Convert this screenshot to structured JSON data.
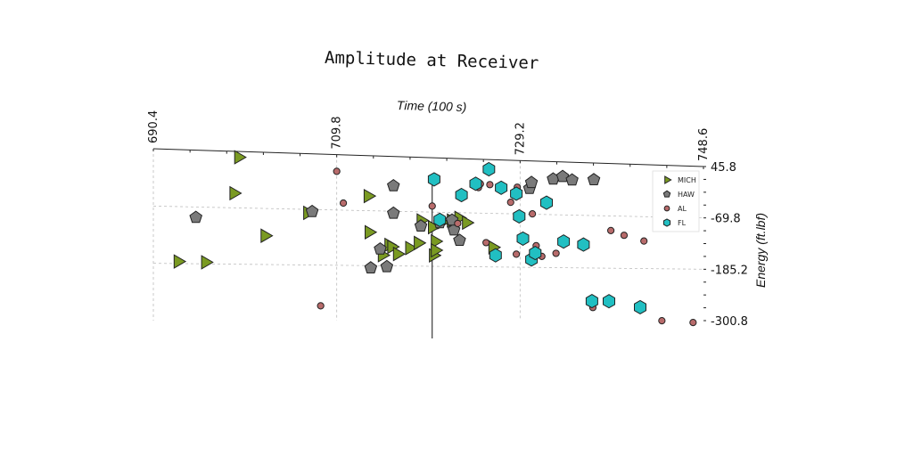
{
  "chart_data": {
    "type": "scatter",
    "title": "Amplitude at Receiver",
    "xlabel": "Time (100 s)",
    "ylabel": "Energy (ft.lbf)",
    "xlim": [
      690.4,
      748.6
    ],
    "ylim": [
      -300.8,
      45.8
    ],
    "xticks": [
      "690.4",
      "709.8",
      "729.2",
      "748.6"
    ],
    "yticks": [
      "45.8",
      "-69.8",
      "-185.2",
      "-300.8"
    ],
    "grid": true,
    "legend_position": "top-right",
    "colors": {
      "MICH": "#7a9a22",
      "HAW": "#7a7a7a",
      "AL": "#b86b6b",
      "FL": "#21bfc2"
    },
    "series": [
      {
        "name": "MICH",
        "marker": "triangle-right",
        "points": [
          [
            699.4,
            34
          ],
          [
            698.9,
            -40
          ],
          [
            693.0,
            -181
          ],
          [
            695.9,
            -182
          ],
          [
            702.2,
            -126
          ],
          [
            706.7,
            -77
          ],
          [
            713.1,
            -39
          ],
          [
            713.2,
            -115
          ],
          [
            714.6,
            -163
          ],
          [
            715.3,
            -141
          ],
          [
            715.6,
            -145
          ],
          [
            716.2,
            -160
          ],
          [
            717.5,
            -147
          ],
          [
            718.4,
            -136
          ],
          [
            718.7,
            -88
          ],
          [
            720.0,
            -162
          ],
          [
            720.2,
            -132
          ],
          [
            720.2,
            -151
          ],
          [
            719.9,
            -102
          ],
          [
            720.9,
            -91
          ],
          [
            721.9,
            -87
          ],
          [
            722.7,
            -81
          ],
          [
            723.5,
            -91
          ],
          [
            726.3,
            -143
          ]
        ]
      },
      {
        "name": "HAW",
        "marker": "pentagon",
        "points": [
          [
            694.9,
            -91
          ],
          [
            707.2,
            -74
          ],
          [
            713.4,
            -190
          ],
          [
            714.4,
            -150
          ],
          [
            715.1,
            -187
          ],
          [
            715.8,
            -74
          ],
          [
            715.8,
            -16
          ],
          [
            718.7,
            -100
          ],
          [
            720.7,
            -92
          ],
          [
            722.2,
            -107
          ],
          [
            722.8,
            -129
          ],
          [
            730.2,
            -14
          ],
          [
            730.4,
            -1
          ],
          [
            732.7,
            8
          ],
          [
            733.7,
            14
          ],
          [
            737.0,
            9
          ],
          [
            734.7,
            7
          ],
          [
            722.0,
            -86
          ]
        ]
      },
      {
        "name": "AL",
        "marker": "circle",
        "points": [
          [
            709.8,
            11
          ],
          [
            710.5,
            -55
          ],
          [
            708.1,
            -270
          ],
          [
            719.9,
            -57
          ],
          [
            722.6,
            -93
          ],
          [
            724.8,
            -15
          ],
          [
            725.0,
            -7
          ],
          [
            726.0,
            -8
          ],
          [
            725.6,
            -133
          ],
          [
            728.2,
            -45
          ],
          [
            728.8,
            -157
          ],
          [
            728.9,
            -12
          ],
          [
            730.5,
            -69
          ],
          [
            730.9,
            -138
          ],
          [
            731.5,
            -161
          ],
          [
            733.0,
            -154
          ],
          [
            736.9,
            -272
          ],
          [
            738.8,
            -102
          ],
          [
            740.2,
            -112
          ],
          [
            742.3,
            -124
          ],
          [
            744.2,
            -301
          ],
          [
            747.5,
            -305
          ]
        ]
      },
      {
        "name": "FL",
        "marker": "hexagon",
        "points": [
          [
            720.1,
            0
          ],
          [
            720.7,
            -86
          ],
          [
            723.0,
            -32
          ],
          [
            724.5,
            -7
          ],
          [
            725.9,
            25
          ],
          [
            726.6,
            -160
          ],
          [
            727.2,
            -14
          ],
          [
            728.8,
            -26
          ],
          [
            729.1,
            -75
          ],
          [
            729.5,
            -123
          ],
          [
            730.4,
            -168
          ],
          [
            730.8,
            -154
          ],
          [
            732.0,
            -44
          ],
          [
            733.8,
            -128
          ],
          [
            735.9,
            -134
          ],
          [
            736.8,
            -258
          ],
          [
            738.6,
            -258
          ],
          [
            741.9,
            -271
          ]
        ]
      }
    ]
  }
}
